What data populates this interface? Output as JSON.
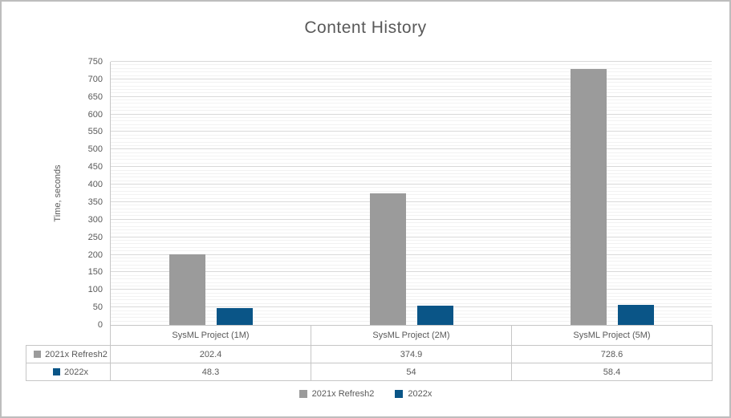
{
  "colors": {
    "text": "#595959",
    "grid_major": "#D9D9D9",
    "grid_minor": "#F2F2F2",
    "table_border": "#C6C6C6",
    "frame_border": "#BDBDBD",
    "series1": "#9B9B9B",
    "series2": "#0A5587"
  },
  "chart_data": {
    "type": "bar",
    "title": "Content History",
    "xlabel": "",
    "ylabel": "Time, seconds",
    "categories": [
      "SysML Project (1M)",
      "SysML Project (2M)",
      "SysML Project (5M)"
    ],
    "series": [
      {
        "name": "2021x Refresh2",
        "color": "#9B9B9B",
        "values": [
          202.4,
          374.9,
          728.6
        ]
      },
      {
        "name": "2022x",
        "color": "#0A5587",
        "values": [
          48.3,
          54,
          58.4
        ]
      }
    ],
    "ylim": [
      0,
      750
    ],
    "y_tick_step": 50,
    "y_minor_step": 10,
    "grid": true,
    "legend_position": "bottom",
    "data_table_shown": true
  }
}
